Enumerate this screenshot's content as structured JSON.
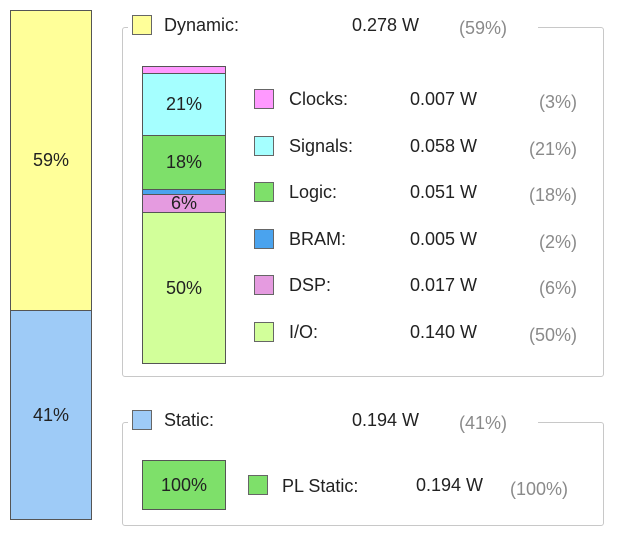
{
  "chart_data": {
    "type": "bar",
    "stacked": true,
    "total": [
      {
        "name": "Dynamic",
        "label": "Dynamic:",
        "value_text": "0.278 W",
        "percent": 59,
        "percent_text": "(59%)",
        "bar_text": "59%",
        "color": "#ffff99"
      },
      {
        "name": "Static",
        "label": "Static:",
        "value_text": "0.194 W",
        "percent": 41,
        "percent_text": "(41%)",
        "bar_text": "41%",
        "color": "#9ecbf7"
      }
    ],
    "dynamic_breakdown": [
      {
        "name": "Clocks",
        "label": "Clocks:",
        "value": 0.007,
        "value_text": "0.007 W",
        "percent": 3,
        "percent_text": "(3%)",
        "bar_text": "",
        "color": "#ff99ff"
      },
      {
        "name": "Signals",
        "label": "Signals:",
        "value": 0.058,
        "value_text": "0.058 W",
        "percent": 21,
        "percent_text": "(21%)",
        "bar_text": "21%",
        "color": "#a5ffff"
      },
      {
        "name": "Logic",
        "label": "Logic:",
        "value": 0.051,
        "value_text": "0.051 W",
        "percent": 18,
        "percent_text": "(18%)",
        "bar_text": "18%",
        "color": "#7ee06a"
      },
      {
        "name": "BRAM",
        "label": "BRAM:",
        "value": 0.005,
        "value_text": "0.005 W",
        "percent": 2,
        "percent_text": "(2%)",
        "bar_text": "",
        "color": "#4aa3ee"
      },
      {
        "name": "DSP",
        "label": "DSP:",
        "value": 0.017,
        "value_text": "0.017 W",
        "percent": 6,
        "percent_text": "(6%)",
        "bar_text": "6%",
        "color": "#e59be0"
      },
      {
        "name": "I/O",
        "label": "I/O:",
        "value": 0.14,
        "value_text": "0.140 W",
        "percent": 50,
        "percent_text": "(50%)",
        "bar_text": "50%",
        "color": "#d2ff9a"
      }
    ],
    "static_breakdown": [
      {
        "name": "PL Static",
        "label": "PL Static:",
        "value": 0.194,
        "value_text": "0.194 W",
        "percent": 100,
        "percent_text": "(100%)",
        "bar_text": "100%",
        "color": "#7ee06a"
      }
    ]
  }
}
